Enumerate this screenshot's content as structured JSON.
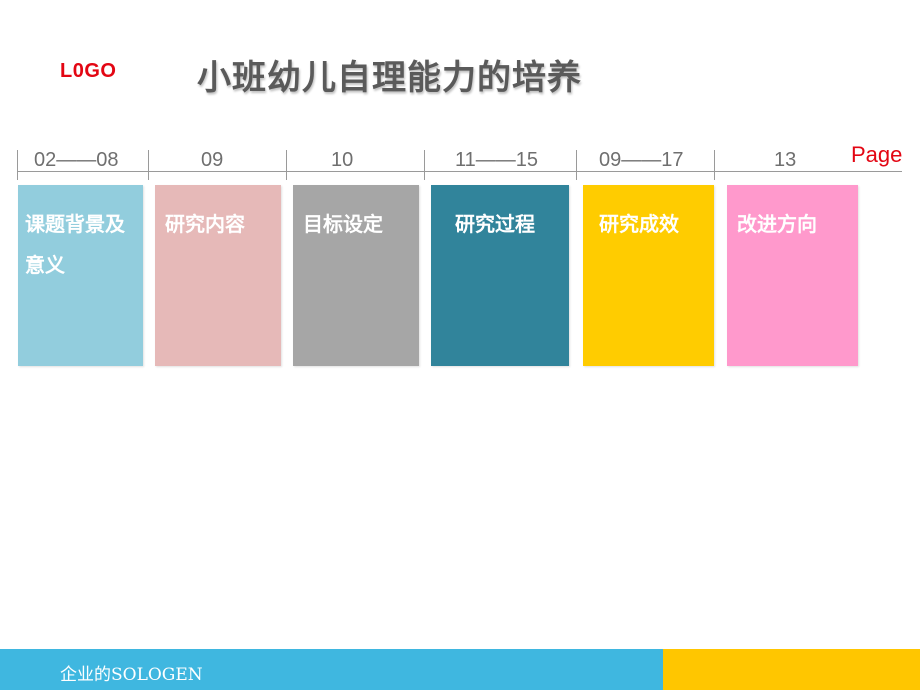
{
  "header": {
    "logo": "L0GO",
    "title": "小班幼儿自理能力的培养"
  },
  "timeline": {
    "page_label": "Page",
    "ranges": [
      "02——08",
      "09",
      "10",
      "11——15",
      "09——17",
      "13"
    ]
  },
  "cards": [
    {
      "label": "课题背景及意义",
      "color": "#92cddd"
    },
    {
      "label": "研究内容",
      "color": "#e6b9b8"
    },
    {
      "label": "目标设定",
      "color": "#a6a6a6"
    },
    {
      "label": "研究过程",
      "color": "#31849b"
    },
    {
      "label": "研究成效",
      "color": "#ffcc00"
    },
    {
      "label": "改进方向",
      "color": "#ff99cc"
    }
  ],
  "footer": {
    "text": "企业的SOLOGEN",
    "colors": {
      "left": "#3fb7e0",
      "right": "#ffc600"
    }
  }
}
